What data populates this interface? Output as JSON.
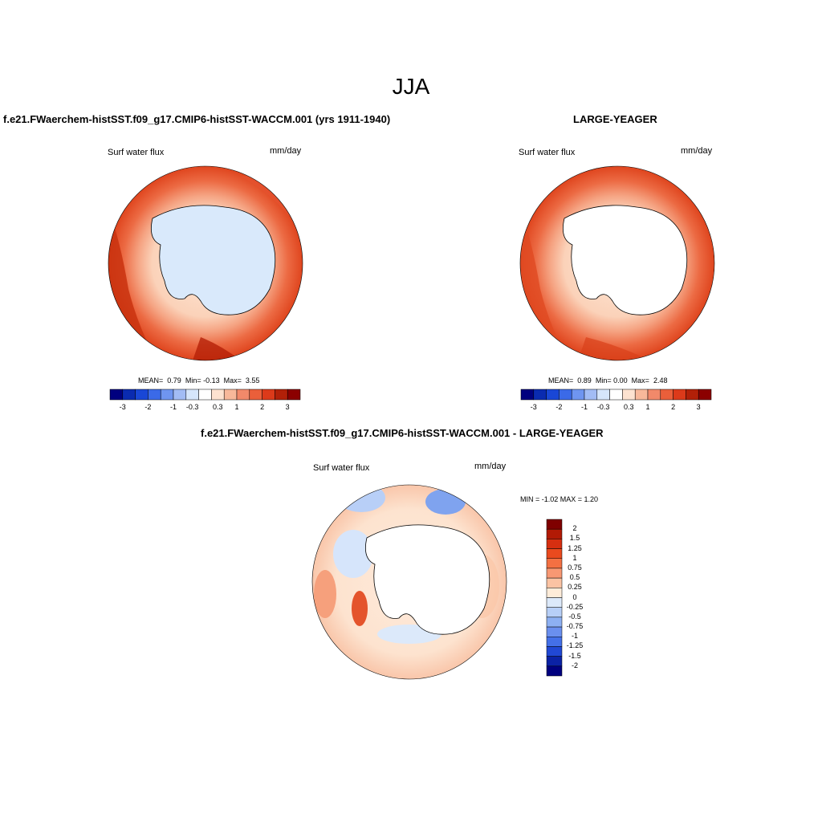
{
  "title": "JJA",
  "panels": [
    {
      "title": "f.e21.FWaerchem-histSST.f09_g17.CMIP6-histSST-WACCM.001 (yrs 1911-1940)",
      "variable": "Surf water flux",
      "units": "mm/day",
      "stats": {
        "mean_label": "MEAN=",
        "mean": "0.79",
        "min_label": "Min=",
        "min": "-0.13",
        "max_label": "Max=",
        "max": "3.55"
      }
    },
    {
      "title": "LARGE-YEAGER",
      "variable": "Surf water flux",
      "units": "mm/day",
      "stats": {
        "mean_label": "MEAN=",
        "mean": "0.89",
        "min_label": "Min=",
        "min": "0.00",
        "max_label": "Max=",
        "max": "2.48"
      }
    },
    {
      "title": "f.e21.FWaerchem-histSST.f09_g17.CMIP6-histSST-WACCM.001 - LARGE-YEAGER",
      "variable": "Surf water flux",
      "units": "mm/day",
      "stats_text": "MIN = -1.02 MAX = 1.20"
    }
  ],
  "colorbar_top": {
    "tick_labels": [
      "-3",
      "-2",
      "-1",
      "-0.3",
      "0.3",
      "1",
      "2",
      "3"
    ],
    "colors": [
      "#00007f",
      "#0a2bb0",
      "#1947d6",
      "#3b6ae8",
      "#6f95f0",
      "#a2bcf5",
      "#d6e6fb",
      "#ffffff",
      "#fde2d0",
      "#f8b89a",
      "#f2896a",
      "#ea5f3a",
      "#dc3a1a",
      "#b22008",
      "#8b0000"
    ]
  },
  "colorbar_diff": {
    "tick_labels": [
      "2",
      "1.5",
      "1.25",
      "1",
      "0.75",
      "0.5",
      "0.25",
      "0",
      "-0.25",
      "-0.5",
      "-0.75",
      "-1",
      "-1.25",
      "-1.5",
      "-2"
    ],
    "colors": [
      "#7f0000",
      "#b21a05",
      "#d62f10",
      "#ea4a1e",
      "#f37042",
      "#f89873",
      "#fbc3a3",
      "#feecd9",
      "#dce9fa",
      "#b7cff7",
      "#8db0f2",
      "#6a8fee",
      "#4470e8",
      "#2148d4",
      "#0b22a5",
      "#00007f"
    ]
  }
}
